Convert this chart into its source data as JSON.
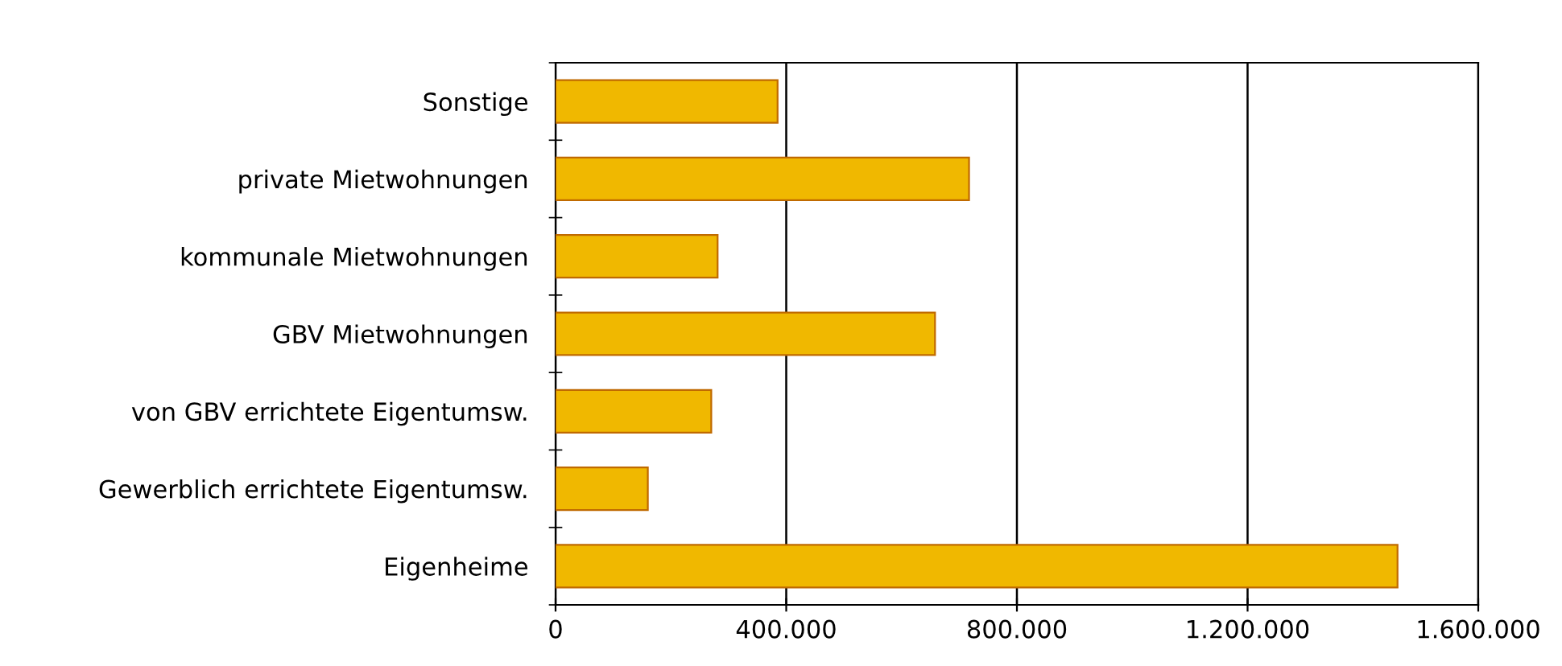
{
  "chart_data": {
    "type": "bar",
    "orientation": "horizontal",
    "categories": [
      "Sonstige",
      "private Mietwohnungen",
      "kommunale Mietwohnungen",
      "GBV Mietwohnungen",
      "von GBV errichtete Eigentumsw.",
      "Gewerblich errichtete Eigentumsw.",
      "Eigenheime"
    ],
    "values": [
      385000,
      717000,
      281000,
      658000,
      270000,
      160000,
      1460000
    ],
    "color": "#f0b800",
    "xlim": [
      0,
      1600000
    ],
    "xticks": [
      {
        "value": 0,
        "label": "0"
      },
      {
        "value": 400000,
        "label": "400.000"
      },
      {
        "value": 800000,
        "label": "800.000"
      },
      {
        "value": 1200000,
        "label": "1.200.000"
      },
      {
        "value": 1600000,
        "label": "1.600.000"
      }
    ],
    "grid": "x",
    "legend": false
  }
}
